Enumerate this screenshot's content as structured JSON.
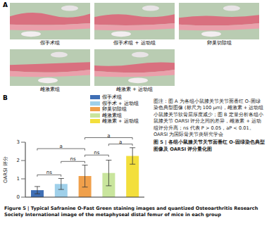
{
  "panel_a": {
    "label": "A",
    "images": [
      "假手术组",
      "假手术组 + 运动组",
      "卵巢切除组",
      "雌激素组",
      "雌激素 + 运动组"
    ]
  },
  "panel_b": {
    "label": "B"
  },
  "chart_data": {
    "type": "bar",
    "categories": [
      "假手术组",
      "假手术 + 运动组",
      "卵巢切除组",
      "雌激素组",
      "雌激素 + 运动组"
    ],
    "values": [
      0.38,
      0.72,
      1.15,
      1.32,
      2.25
    ],
    "errors": [
      0.2,
      0.3,
      0.6,
      0.7,
      0.45
    ],
    "colors": [
      "#3f6fb5",
      "#9fd0ea",
      "#f0a04b",
      "#c9e59d",
      "#f3df3c"
    ],
    "y_label": "OARSI 评分",
    "ylim": [
      0,
      3
    ],
    "yticks": [
      0,
      1,
      2,
      3
    ],
    "grid": false,
    "tick_labels": "y",
    "significance": [
      {
        "from": "假手术组",
        "to": "假手术 + 运动组",
        "label": "ns"
      },
      {
        "from": "假手术 + 运动组",
        "to": "卵巢切除组",
        "label": "ns"
      },
      {
        "from": "卵巢切除组",
        "to": "雌激素组",
        "label": "ns"
      },
      {
        "from": "雌激素组",
        "to": "雌激素 + 运动组",
        "label": "a"
      },
      {
        "from": "假手术组",
        "to": "卵巢切除组",
        "label": "a"
      },
      {
        "from": "卵巢切除组",
        "to": "雌激素 + 运动组",
        "label": "a"
      }
    ]
  },
  "caption_note": "图注：图 A 为各组小鼠膝关节关节面番红 O-固绿染色典型图像 (标尺为 100 μm)，雌激素 + 运动组小鼠膝关节软骨层厚度减少；图 B 定量分析各组小鼠膝关节 OARSI 评分之间的差异，雌激素 + 运动组评分升高；ns 代表 P > 0.05，aP < 0.01。OARSI 为国际骨关节炎研究学会",
  "caption_title_zh": "图 5 | 各组小鼠膝关节关节面番红 O-固绿染色典型图像及 OARSI 评分量化图",
  "caption_title_en": "Figure 5 | Typical Safranine O-Fast Green staining images and quantized Osteoarthritis Research Society International image of the metaphyseal distal femur of mice in each group"
}
